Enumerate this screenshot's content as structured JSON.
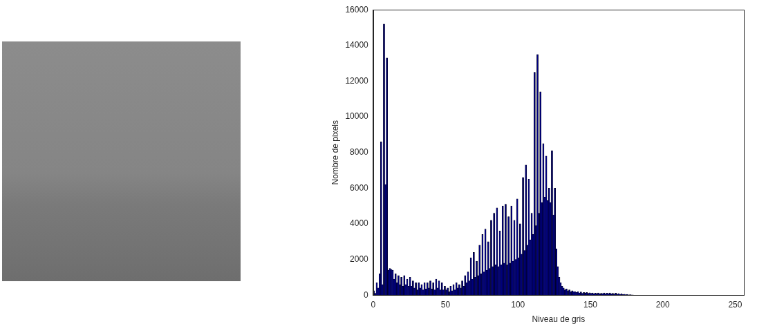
{
  "chart_data": {
    "type": "histogram",
    "x_label": "Niveau de gris",
    "y_label": "Nombre de pixels",
    "color": "#00007f",
    "grid": false,
    "xlim": [
      0,
      256
    ],
    "xticks": [
      0,
      50,
      100,
      150,
      200,
      250
    ],
    "ylim": [
      0,
      16000
    ],
    "yticks": [
      0,
      2000,
      4000,
      6000,
      8000,
      10000,
      12000,
      14000,
      16000
    ],
    "bins": [
      0,
      1,
      2,
      3,
      4,
      5,
      6,
      7,
      8,
      9,
      10,
      11,
      12,
      13,
      14,
      15,
      16,
      17,
      18,
      19,
      20,
      21,
      22,
      23,
      24,
      25,
      26,
      27,
      28,
      29,
      30,
      31,
      32,
      33,
      34,
      35,
      36,
      37,
      38,
      39,
      40,
      41,
      42,
      43,
      44,
      45,
      46,
      47,
      48,
      49,
      50,
      51,
      52,
      53,
      54,
      55,
      56,
      57,
      58,
      59,
      60,
      61,
      62,
      63,
      64,
      65,
      66,
      67,
      68,
      69,
      70,
      71,
      72,
      73,
      74,
      75,
      76,
      77,
      78,
      79,
      80,
      81,
      82,
      83,
      84,
      85,
      86,
      87,
      88,
      89,
      90,
      91,
      92,
      93,
      94,
      95,
      96,
      97,
      98,
      99,
      100,
      101,
      102,
      103,
      104,
      105,
      106,
      107,
      108,
      109,
      110,
      111,
      112,
      113,
      114,
      115,
      116,
      117,
      118,
      119,
      120,
      121,
      122,
      123,
      124,
      125,
      126,
      127,
      128,
      129,
      130,
      131,
      132,
      133,
      134,
      135,
      136,
      137,
      138,
      139,
      140,
      141,
      142,
      143,
      144,
      145,
      146,
      147,
      148,
      149,
      150,
      151,
      152,
      153,
      154,
      155,
      156,
      157,
      158,
      159,
      160,
      161,
      162,
      163,
      164,
      165,
      166,
      167,
      168,
      169,
      170,
      171,
      172,
      173,
      174,
      175,
      176,
      177,
      178,
      179,
      180,
      181,
      182,
      183,
      184,
      185,
      186,
      187,
      188,
      189,
      190,
      191,
      192,
      193,
      194,
      195,
      196,
      197,
      198,
      199,
      200,
      201,
      202,
      203,
      204,
      205,
      206,
      207,
      208,
      209,
      210,
      211,
      212,
      213,
      214,
      215,
      216,
      217,
      218,
      219,
      220,
      221,
      222,
      223,
      224,
      225,
      226,
      227,
      228,
      229,
      230,
      231,
      232,
      233,
      234,
      235,
      236,
      237,
      238,
      239,
      240,
      241,
      242,
      243,
      244,
      245,
      246,
      247,
      248,
      249,
      250,
      251,
      252,
      253,
      254,
      255,
      256
    ],
    "values": [
      250,
      100,
      700,
      400,
      1200,
      8600,
      600,
      15200,
      6200,
      13300,
      1400,
      1500,
      1450,
      1400,
      900,
      1200,
      700,
      1100,
      600,
      1000,
      500,
      1100,
      600,
      900,
      500,
      1000,
      500,
      800,
      400,
      700,
      300,
      700,
      400,
      600,
      300,
      700,
      350,
      700,
      400,
      800,
      350,
      700,
      300,
      900,
      400,
      800,
      300,
      700,
      300,
      500,
      300,
      400,
      200,
      500,
      250,
      600,
      300,
      700,
      400,
      600,
      400,
      800,
      500,
      1100,
      700,
      1300,
      800,
      2100,
      900,
      2400,
      1000,
      1900,
      1100,
      2800,
      1200,
      3400,
      1300,
      3700,
      1400,
      3000,
      1500,
      4200,
      1600,
      4600,
      1700,
      4900,
      1600,
      3600,
      1700,
      5000,
      1800,
      5100,
      1700,
      4400,
      1800,
      5000,
      1900,
      4200,
      2000,
      5400,
      2100,
      4000,
      2300,
      6600,
      2500,
      7300,
      2800,
      6500,
      3100,
      4600,
      3400,
      12500,
      3900,
      13500,
      4600,
      11400,
      5200,
      8500,
      5500,
      7800,
      5300,
      6000,
      5200,
      8100,
      4500,
      6000,
      2600,
      1600,
      1000,
      700,
      500,
      400,
      300,
      350,
      250,
      300,
      200,
      250,
      200,
      200,
      150,
      200,
      120,
      180,
      100,
      150,
      120,
      150,
      100,
      130,
      100,
      120,
      80,
      110,
      90,
      120,
      80,
      100,
      90,
      120,
      80,
      110,
      90,
      120,
      70,
      100,
      60,
      110,
      50,
      90,
      40,
      80,
      30,
      50,
      20,
      40,
      10,
      20,
      10,
      5,
      0,
      0,
      0,
      0,
      0,
      0,
      0,
      0,
      0,
      0,
      0,
      0,
      0,
      0,
      0,
      0,
      0,
      0,
      0,
      0,
      0,
      0,
      0,
      0,
      0,
      0,
      0,
      0,
      0,
      0,
      0,
      0,
      0,
      0,
      0,
      0,
      0,
      0,
      0,
      0,
      0,
      0,
      0,
      0,
      0,
      0,
      0,
      0,
      0,
      0,
      0,
      0,
      0,
      0,
      0,
      0,
      0,
      0,
      0,
      0,
      0,
      0,
      0,
      0,
      0,
      0,
      0,
      0,
      0,
      0,
      0,
      0,
      0,
      0,
      0,
      0
    ]
  }
}
